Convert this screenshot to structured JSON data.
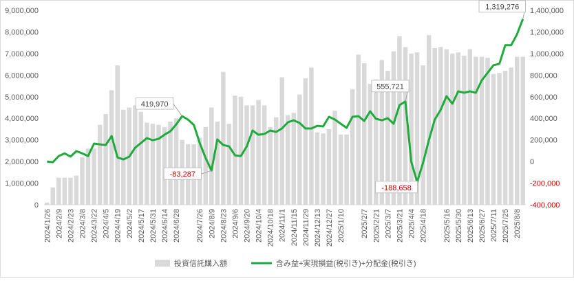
{
  "chart_data": {
    "type": "bar_line",
    "categories": [
      "2024/1/26",
      null,
      "2024/2/9",
      null,
      "2024/2/23",
      null,
      "2024/3/8",
      null,
      "2024/3/22",
      null,
      "2024/4/5",
      null,
      "2024/4/19",
      null,
      "2024/5/2",
      null,
      "2024/5/17",
      null,
      "2024/5/31",
      null,
      "2024/6/14",
      null,
      "2024/6/28",
      null,
      null,
      null,
      "2024/7/26",
      null,
      "2024/8/9",
      null,
      "2024/8/23",
      null,
      "2024/9/6",
      null,
      "2024/9/20",
      null,
      "2024/10/4",
      null,
      "2024/10/18",
      null,
      "2024/11/1",
      null,
      "2024/11/15",
      null,
      "2024/11/29",
      null,
      "2024/12/13",
      null,
      "2024/12/27",
      null,
      "2025/1/10",
      null,
      null,
      null,
      "2025/2/7",
      null,
      "2025/2/21",
      null,
      "2025/3/7",
      null,
      "2025/3/21",
      null,
      "2025/4/4",
      null,
      "2025/4/18",
      null,
      null,
      null,
      "2025/5/16",
      null,
      "2025/5/30",
      null,
      "2025/6/13",
      null,
      "2025/6/27",
      null,
      "2025/7/11",
      null,
      "2025/7/25",
      null,
      "2025/8/8",
      null
    ],
    "series": [
      {
        "name": "投資信託購入額",
        "kind": "bar",
        "color": "#d9d9d9",
        "values": [
          100000,
          800000,
          1250000,
          1250000,
          1250000,
          1350000,
          2200000,
          2600000,
          2600000,
          3700000,
          4200000,
          5300000,
          6450000,
          4400000,
          4500000,
          4600000,
          4300000,
          3800000,
          3750000,
          3700000,
          3600000,
          3850000,
          4000000,
          3000000,
          2800000,
          2800000,
          3100000,
          3600000,
          4500000,
          3850000,
          6150000,
          3750000,
          5050000,
          5000000,
          4600000,
          4600000,
          4850000,
          4600000,
          3600000,
          4050000,
          5900000,
          4150000,
          4250000,
          5100000,
          5850000,
          6350000,
          3350000,
          3300000,
          3500000,
          4350000,
          3250000,
          3250000,
          5350000,
          6950000,
          6550000,
          5600000,
          5800000,
          6700000,
          6200000,
          7100000,
          7800000,
          7300000,
          7000000,
          7050000,
          6450000,
          7850000,
          7250000,
          7300000,
          7200000,
          7000000,
          7050000,
          6900000,
          7200000,
          6850000,
          6850000,
          6800000,
          6050000,
          6100000,
          6200000,
          6350000,
          6850000,
          6850000
        ]
      },
      {
        "name": "含み益+実現損益(税引き)+分配金(税引き)",
        "kind": "line",
        "axis": "y2",
        "color": "#1faa3c",
        "values": [
          0,
          -6000,
          51000,
          76000,
          45000,
          96000,
          76000,
          51000,
          166000,
          159000,
          153000,
          236000,
          38000,
          19000,
          45000,
          127000,
          172000,
          217000,
          197000,
          210000,
          248000,
          280000,
          344000,
          419970,
          389000,
          338000,
          172000,
          32000,
          -83287,
          204000,
          153000,
          140000,
          57000,
          51000,
          140000,
          287000,
          248000,
          255000,
          287000,
          274000,
          306000,
          363000,
          382000,
          357000,
          306000,
          306000,
          331000,
          325000,
          414000,
          389000,
          350000,
          312000,
          414000,
          420000,
          376000,
          465000,
          395000,
          382000,
          401000,
          350000,
          522000,
          555721,
          0,
          -188658,
          -13000,
          197000,
          389000,
          478000,
          605000,
          535000,
          650000,
          637000,
          650000,
          637000,
          752000,
          822000,
          892000,
          905000,
          1077000,
          1077000,
          1178000,
          1319276
        ],
        "value_labels": [
          null,
          null,
          null,
          null,
          null,
          null,
          null,
          null,
          null,
          null,
          null,
          null,
          null,
          null,
          null,
          null,
          null,
          null,
          null,
          null,
          null,
          null,
          null,
          "419,970",
          null,
          null,
          null,
          null,
          "-83,287",
          null,
          null,
          null,
          null,
          null,
          null,
          null,
          null,
          null,
          null,
          null,
          null,
          null,
          null,
          null,
          null,
          null,
          null,
          null,
          null,
          null,
          null,
          null,
          null,
          null,
          null,
          null,
          null,
          null,
          null,
          null,
          null,
          "555,721",
          null,
          "-188,658",
          null,
          null,
          null,
          null,
          null,
          null,
          null,
          null,
          null,
          null,
          null,
          null,
          null,
          null,
          null,
          null,
          null,
          "1,319,276"
        ]
      }
    ],
    "ylim": [
      0,
      9000000
    ],
    "yticks": [
      0,
      {
        "value": 1000000,
        "label": "1,000,000"
      },
      {
        "value": 2000000,
        "label": "2,000,000"
      },
      {
        "value": 3000000,
        "label": "3,000,000"
      },
      {
        "value": 4000000,
        "label": "4,000,000"
      },
      {
        "value": 5000000,
        "label": "5,000,000"
      },
      {
        "value": 6000000,
        "label": "6,000,000"
      },
      {
        "value": 7000000,
        "label": "7,000,000"
      },
      {
        "value": 8000000,
        "label": "8,000,000"
      },
      {
        "value": 9000000,
        "label": "9,000,000"
      }
    ],
    "y2lim": [
      -400000,
      1400000
    ],
    "y2ticks": [
      {
        "value": -400000,
        "label": "-400,000"
      },
      {
        "value": -200000,
        "label": "-200,000"
      },
      0,
      {
        "value": 200000,
        "label": "200,000"
      },
      {
        "value": 400000,
        "label": "400,000"
      },
      {
        "value": 600000,
        "label": "600,000"
      },
      {
        "value": 800000,
        "label": "800,000"
      },
      {
        "value": 1000000,
        "label": "1,000,000"
      },
      {
        "value": 1200000,
        "label": "1,200,000"
      },
      {
        "value": 1400000,
        "label": "1,400,000"
      }
    ],
    "negative_color": "#c00000",
    "grid": false,
    "legend": "bottom"
  }
}
